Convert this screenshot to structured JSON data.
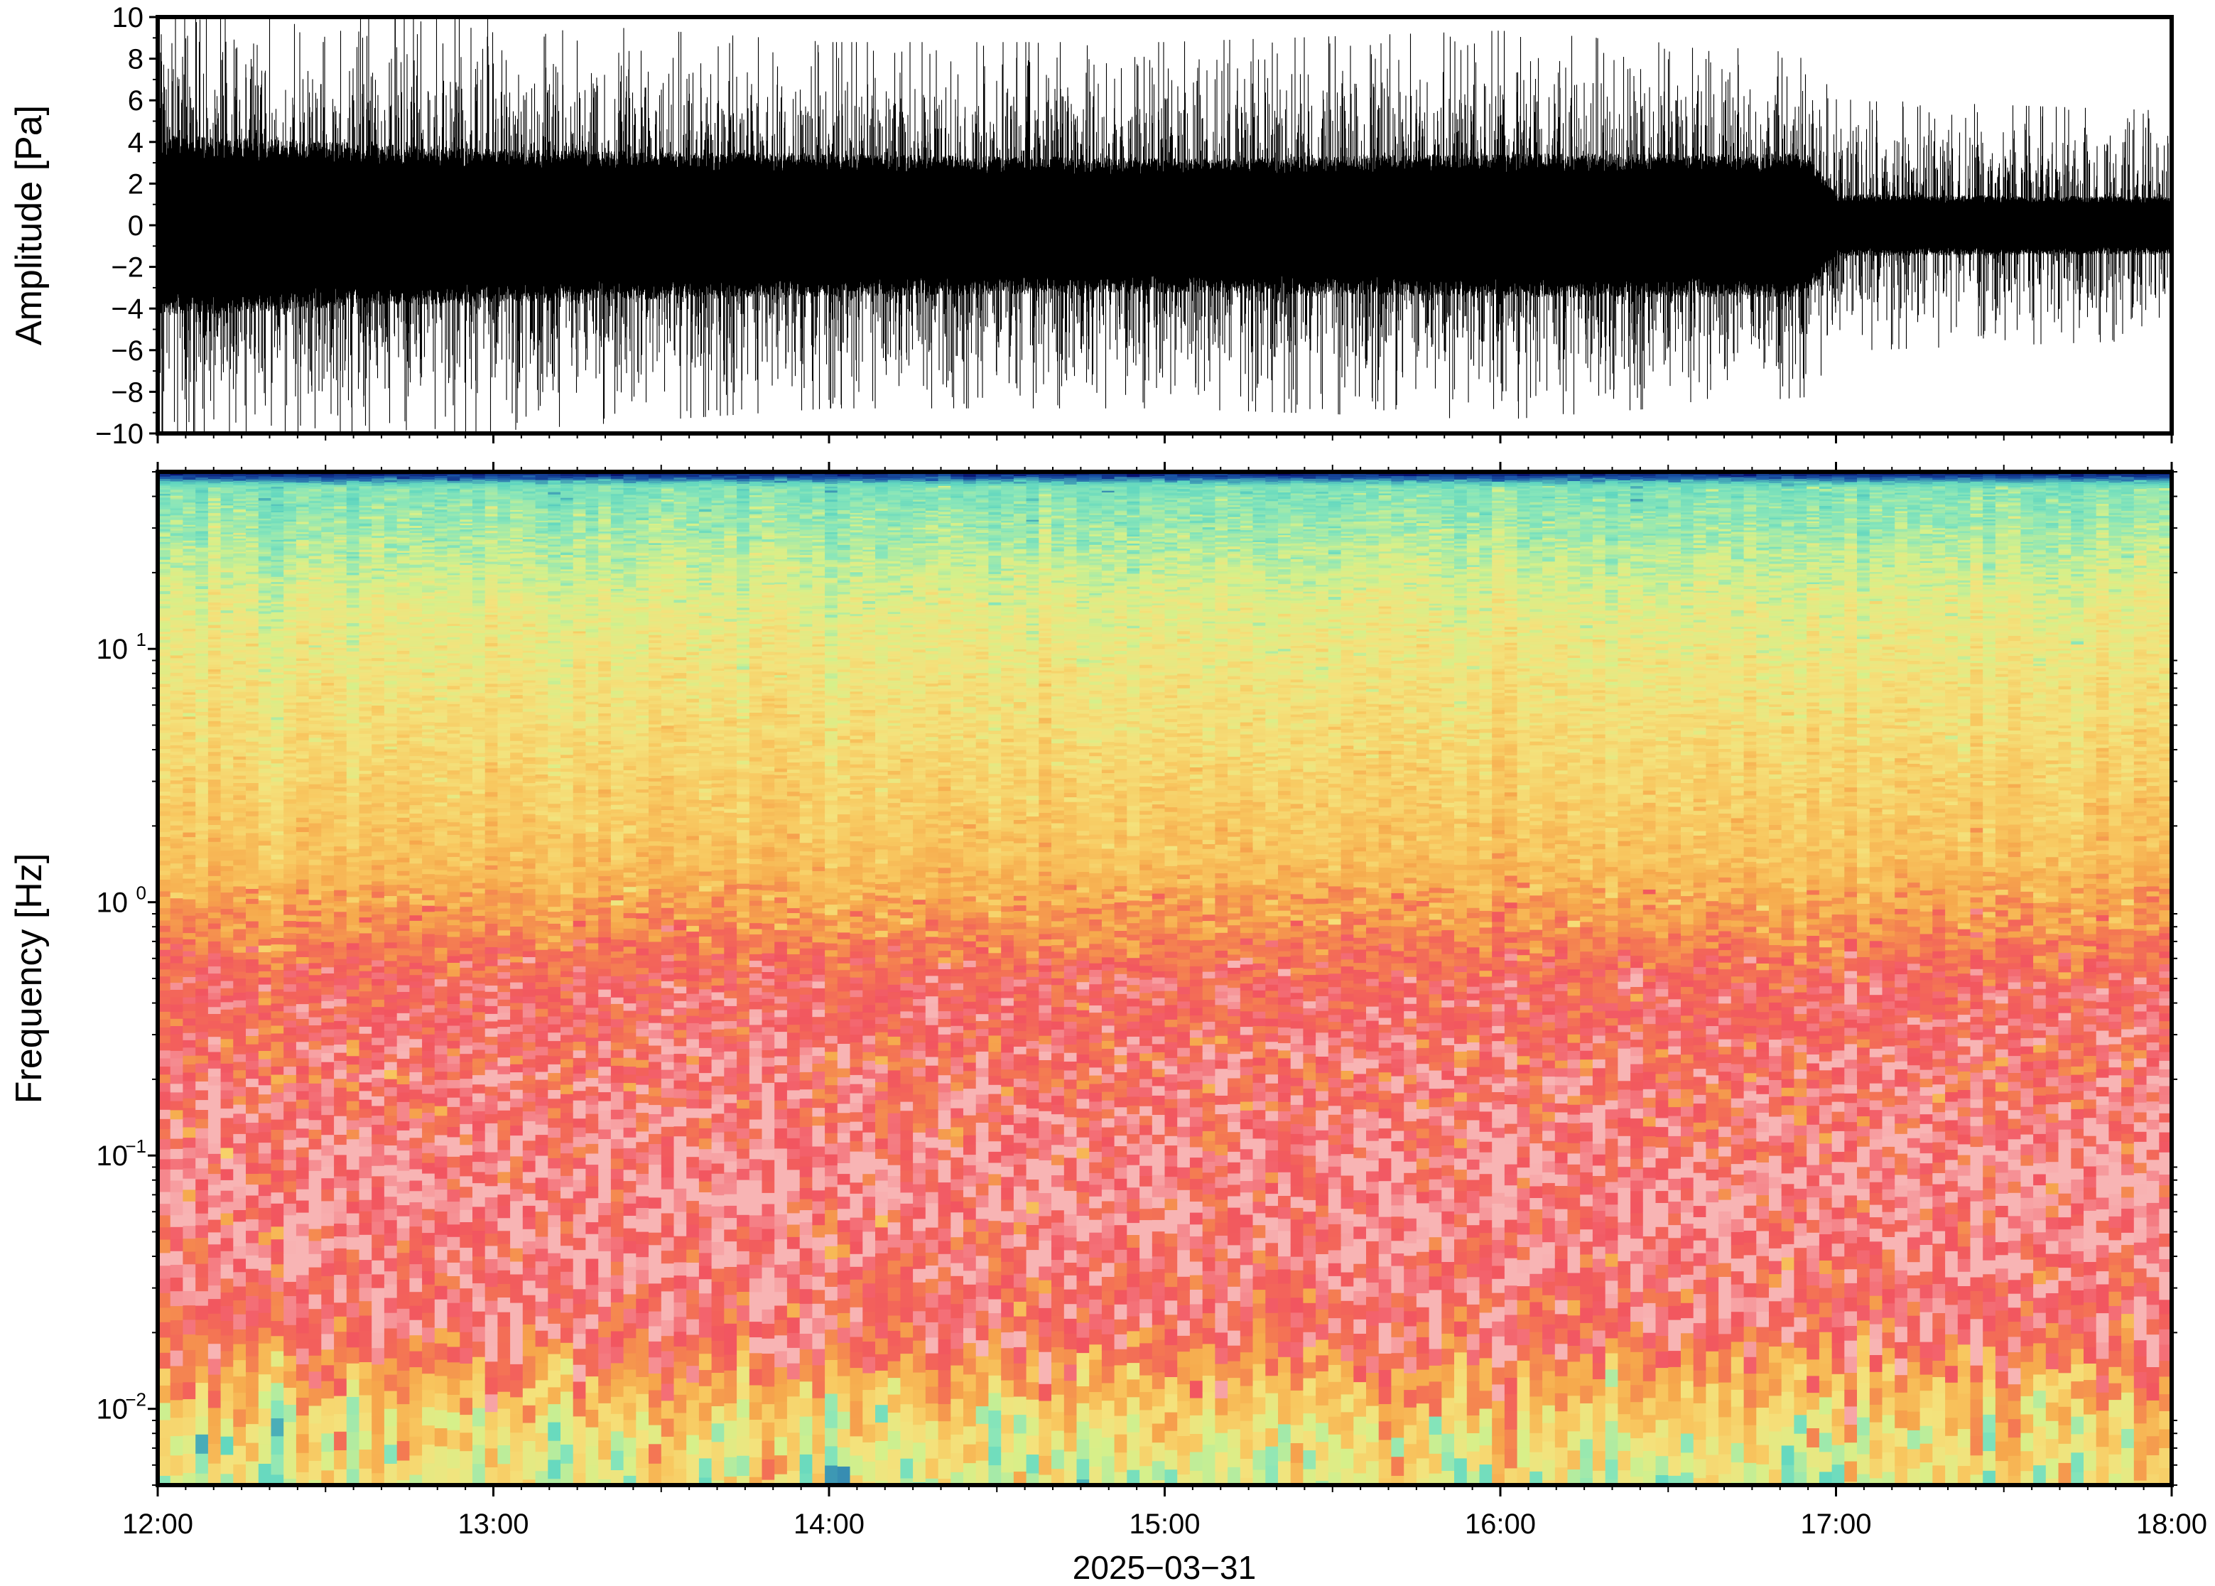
{
  "chart_data": [
    {
      "type": "line",
      "panel": "waveform",
      "ylabel": "Amplitude [Pa]",
      "ylim": [
        -10,
        10
      ],
      "yticks": [
        10,
        8,
        6,
        4,
        2,
        0,
        -2,
        -4,
        -6,
        -8,
        -10
      ],
      "ytick_labels": [
        "10",
        "8",
        "6",
        "4",
        "2",
        "0",
        "−2",
        "−4",
        "−6",
        "−8",
        "−10"
      ],
      "x_range": [
        "12:00",
        "18:00"
      ],
      "envelope": {
        "times": [
          "12:00",
          "13:00",
          "14:00",
          "15:00",
          "16:00",
          "16:55",
          "17:00",
          "18:00"
        ],
        "core_half_width": [
          3.8,
          3.2,
          3.0,
          2.8,
          3.0,
          3.0,
          1.3,
          1.2
        ],
        "peak_amplitude": [
          9.5,
          9.0,
          8.0,
          8.0,
          8.5,
          7.5,
          5.5,
          5.0
        ]
      },
      "line_color": "#000000"
    },
    {
      "type": "heatmap",
      "panel": "spectrogram",
      "ylabel": "Frequency [Hz]",
      "yscale": "log",
      "ylim": [
        0.005,
        50
      ],
      "yticks": [
        {
          "value": 10,
          "base": "10",
          "exp": "1"
        },
        {
          "value": 1,
          "base": "10",
          "exp": "0"
        },
        {
          "value": 0.1,
          "base": "10",
          "exp": "−1"
        },
        {
          "value": 0.01,
          "base": "10",
          "exp": "−2"
        }
      ],
      "x_range": [
        "12:00",
        "18:00"
      ],
      "colormap": [
        "#08106e",
        "#1c5aa8",
        "#5fd6c0",
        "#8ae6b9",
        "#d6f08a",
        "#f4e27c",
        "#f8c860",
        "#f6a84c",
        "#f47a52",
        "#f25560",
        "#f8b4b4"
      ],
      "band_structure": [
        {
          "freq_range": [
            45,
            50
          ],
          "level": "lowest",
          "color": "#08106e"
        },
        {
          "freq_range": [
            20,
            45
          ],
          "level": "low",
          "color": "#8ae6b9"
        },
        {
          "freq_range": [
            5,
            20
          ],
          "level": "low-mid",
          "color": "#e6ea86"
        },
        {
          "freq_range": [
            1,
            5
          ],
          "level": "mid",
          "color": "#f6cc62"
        },
        {
          "freq_range": [
            0.3,
            1
          ],
          "level": "high",
          "color": "#f25560"
        },
        {
          "freq_range": [
            0.04,
            0.3
          ],
          "level": "high-variable",
          "color": "#f8a0a8"
        },
        {
          "freq_range": [
            0.015,
            0.04
          ],
          "level": "highest",
          "color": "#f25560"
        },
        {
          "freq_range": [
            0.005,
            0.015
          ],
          "level": "variable",
          "color": "#f6b04c"
        }
      ]
    }
  ],
  "xaxis": {
    "ticks": [
      "12:00",
      "13:00",
      "14:00",
      "15:00",
      "16:00",
      "17:00",
      "18:00"
    ],
    "date_label": "2025−03−31"
  }
}
